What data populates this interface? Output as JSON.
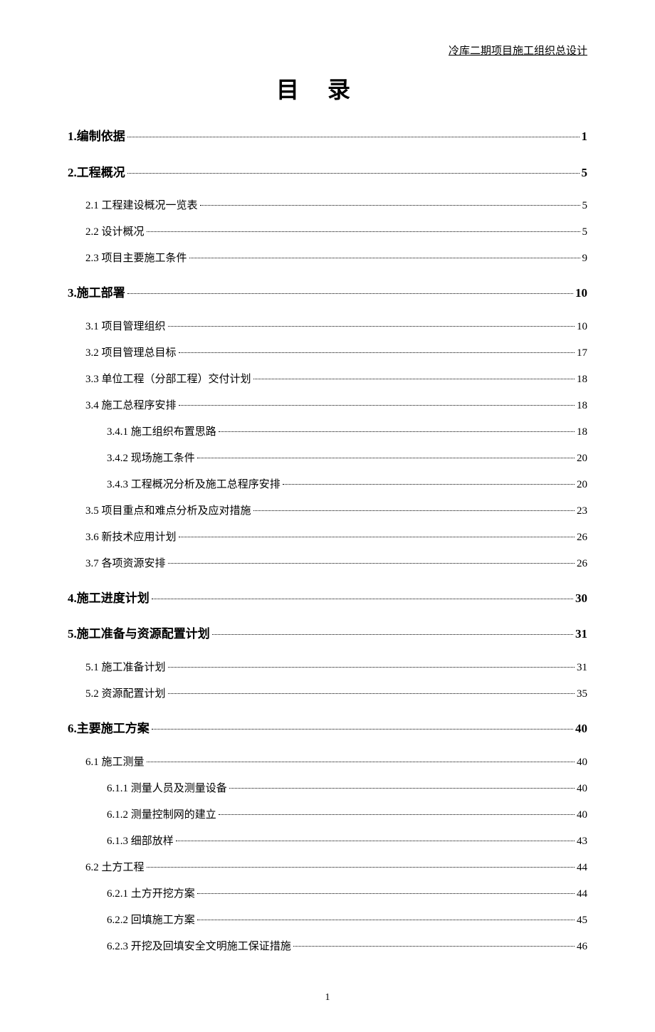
{
  "header": "冷库二期项目施工组织总设计",
  "title": "目录",
  "page_number": "1",
  "entries": [
    {
      "level": 1,
      "label": "1.编制依据",
      "page": "1"
    },
    {
      "level": 1,
      "label": "2.工程概况",
      "page": "5"
    },
    {
      "level": 2,
      "label": "2.1 工程建设概况一览表",
      "page": "5"
    },
    {
      "level": 2,
      "label": "2.2 设计概况",
      "page": "5"
    },
    {
      "level": 2,
      "label": "2.3 项目主要施工条件",
      "page": "9"
    },
    {
      "level": 1,
      "label": "3.施工部署",
      "page": "10"
    },
    {
      "level": 2,
      "label": "3.1 项目管理组织",
      "page": "10"
    },
    {
      "level": 2,
      "label": "3.2 项目管理总目标",
      "page": "17"
    },
    {
      "level": 2,
      "label": "3.3 单位工程（分部工程）交付计划",
      "page": "18"
    },
    {
      "level": 2,
      "label": "3.4 施工总程序安排",
      "page": "18"
    },
    {
      "level": 3,
      "label": "3.4.1 施工组织布置思路",
      "page": "18"
    },
    {
      "level": 3,
      "label": "3.4.2 现场施工条件",
      "page": "20"
    },
    {
      "level": 3,
      "label": "3.4.3 工程概况分析及施工总程序安排",
      "page": "20"
    },
    {
      "level": 2,
      "label": "3.5 项目重点和难点分析及应对措施",
      "page": "23"
    },
    {
      "level": 2,
      "label": "3.6 新技术应用计划",
      "page": "26"
    },
    {
      "level": 2,
      "label": "3.7 各项资源安排",
      "page": "26"
    },
    {
      "level": 1,
      "label": "4.施工进度计划",
      "page": "30"
    },
    {
      "level": 1,
      "label": "5.施工准备与资源配置计划",
      "page": "31"
    },
    {
      "level": 2,
      "label": "5.1 施工准备计划",
      "page": "31"
    },
    {
      "level": 2,
      "label": "5.2 资源配置计划",
      "page": "35"
    },
    {
      "level": 1,
      "label": "6.主要施工方案",
      "page": "40"
    },
    {
      "level": 2,
      "label": "6.1 施工测量",
      "page": "40"
    },
    {
      "level": 3,
      "label": "6.1.1 测量人员及测量设备",
      "page": "40"
    },
    {
      "level": 3,
      "label": "6.1.2 测量控制网的建立",
      "page": "40"
    },
    {
      "level": 3,
      "label": "6.1.3 细部放样",
      "page": "43"
    },
    {
      "level": 2,
      "label": "6.2 土方工程",
      "page": "44"
    },
    {
      "level": 3,
      "label": "6.2.1 土方开挖方案",
      "page": "44"
    },
    {
      "level": 3,
      "label": "6.2.2 回填施工方案",
      "page": "45"
    },
    {
      "level": 3,
      "label": "6.2.3 开挖及回填安全文明施工保证措施",
      "page": "46"
    }
  ]
}
